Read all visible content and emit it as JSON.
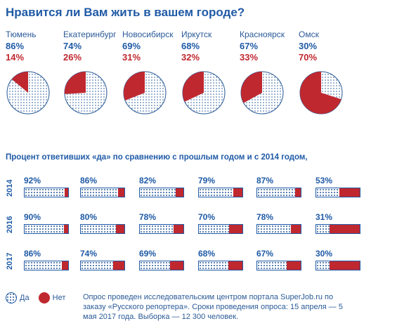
{
  "title": "Нравится ли Вам жить в вашем городе?",
  "subtitle": "Процент ответивших «да» по сравнению с прошлым годом и с 2014 годом,",
  "legend": {
    "yes": "Да",
    "no": "Нет"
  },
  "note": "Опрос проведен исследовательским центром портала SuperJob.ru по заказу «Русского репортера». Сроки проведения опроса: 15 апреля — 5 мая 2017 года. Выборка — 12 300 человек.",
  "colors": {
    "yes": "#2a5a97",
    "no": "#c0282f"
  },
  "chart_data": [
    {
      "type": "pie",
      "title": "Нравится ли Вам жить в вашем городе?",
      "categories": [
        "Тюмень",
        "Екатеринбург",
        "Новосибирск",
        "Иркутск",
        "Красноярск",
        "Омск"
      ],
      "series": [
        {
          "name": "Да",
          "values": [
            86,
            74,
            69,
            68,
            67,
            30
          ]
        },
        {
          "name": "Нет",
          "values": [
            14,
            26,
            31,
            32,
            33,
            70
          ]
        }
      ],
      "labels": {
        "yes": [
          "86%",
          "74%",
          "69%",
          "68%",
          "67%",
          "30%"
        ],
        "no": [
          "14%",
          "26%",
          "31%",
          "32%",
          "33%",
          "70%"
        ]
      }
    },
    {
      "type": "bar",
      "title": "Процент ответивших «да» по сравнению с прошлым годом и с 2014 годом,",
      "categories": [
        "Тюмень",
        "Екатеринбург",
        "Новосибирск",
        "Иркутск",
        "Красноярск",
        "Омск"
      ],
      "series": [
        {
          "name": "2014",
          "values": [
            92,
            86,
            82,
            79,
            87,
            53
          ],
          "labels": [
            "92%",
            "86%",
            "82%",
            "79%",
            "87%",
            "53%"
          ]
        },
        {
          "name": "2016",
          "values": [
            90,
            80,
            78,
            70,
            78,
            31
          ],
          "labels": [
            "90%",
            "80%",
            "78%",
            "70%",
            "78%",
            "31%"
          ]
        },
        {
          "name": "2017",
          "values": [
            86,
            74,
            69,
            68,
            67,
            30
          ],
          "labels": [
            "86%",
            "74%",
            "69%",
            "68%",
            "67%",
            "30%"
          ]
        }
      ],
      "ylim": [
        0,
        100
      ]
    }
  ]
}
